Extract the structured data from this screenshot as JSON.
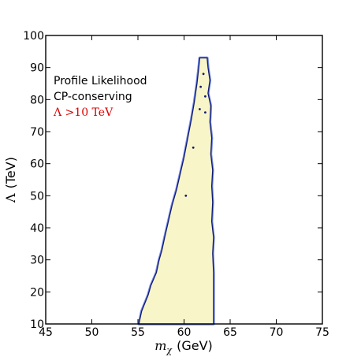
{
  "chart_data": {
    "type": "area",
    "xlabel_symbol": "m",
    "xlabel_subscript": "χ",
    "xlabel_unit": "(GeV)",
    "ylabel_symbol": "Λ",
    "ylabel_unit": "(TeV)",
    "xlim": [
      45,
      75
    ],
    "ylim": [
      10,
      100
    ],
    "xticks": [
      45,
      50,
      55,
      60,
      65,
      70,
      75
    ],
    "yticks": [
      10,
      20,
      30,
      40,
      50,
      60,
      70,
      80,
      90,
      100
    ],
    "annotations": {
      "line1": "Profile Likelihood",
      "line2": "CP-conserving",
      "line3": "Λ >10 TeV"
    },
    "colors": {
      "fill": "#f8f5c8",
      "outline": "#101a6e",
      "outer_fill": "#6f86e8",
      "annotation_red": "#e00000"
    },
    "region": {
      "left_edge": [
        [
          55.1,
          10
        ],
        [
          55.4,
          14
        ],
        [
          56.1,
          19
        ],
        [
          56.4,
          22
        ],
        [
          57.0,
          26
        ],
        [
          57.3,
          30
        ],
        [
          57.6,
          33
        ],
        [
          57.9,
          37
        ],
        [
          58.3,
          42
        ],
        [
          58.7,
          47
        ],
        [
          59.2,
          52
        ],
        [
          59.6,
          57
        ],
        [
          60.0,
          62
        ],
        [
          60.4,
          68
        ],
        [
          60.8,
          74
        ],
        [
          61.1,
          79
        ],
        [
          61.4,
          85
        ],
        [
          61.6,
          90
        ],
        [
          61.7,
          93
        ]
      ],
      "right_edge": [
        [
          62.5,
          93
        ],
        [
          62.6,
          90
        ],
        [
          62.8,
          86
        ],
        [
          62.6,
          82
        ],
        [
          62.9,
          78
        ],
        [
          62.8,
          73
        ],
        [
          63.0,
          68
        ],
        [
          62.9,
          63
        ],
        [
          63.1,
          58
        ],
        [
          63.0,
          53
        ],
        [
          63.1,
          48
        ],
        [
          63.0,
          42
        ],
        [
          63.2,
          37
        ],
        [
          63.1,
          32
        ],
        [
          63.2,
          26
        ],
        [
          63.2,
          20
        ],
        [
          63.2,
          14
        ],
        [
          63.2,
          10
        ]
      ]
    },
    "points": [
      [
        62.1,
        88
      ],
      [
        61.8,
        84
      ],
      [
        62.3,
        81
      ],
      [
        61.7,
        77
      ],
      [
        62.3,
        76
      ],
      [
        61.0,
        65
      ],
      [
        60.2,
        50
      ]
    ]
  }
}
